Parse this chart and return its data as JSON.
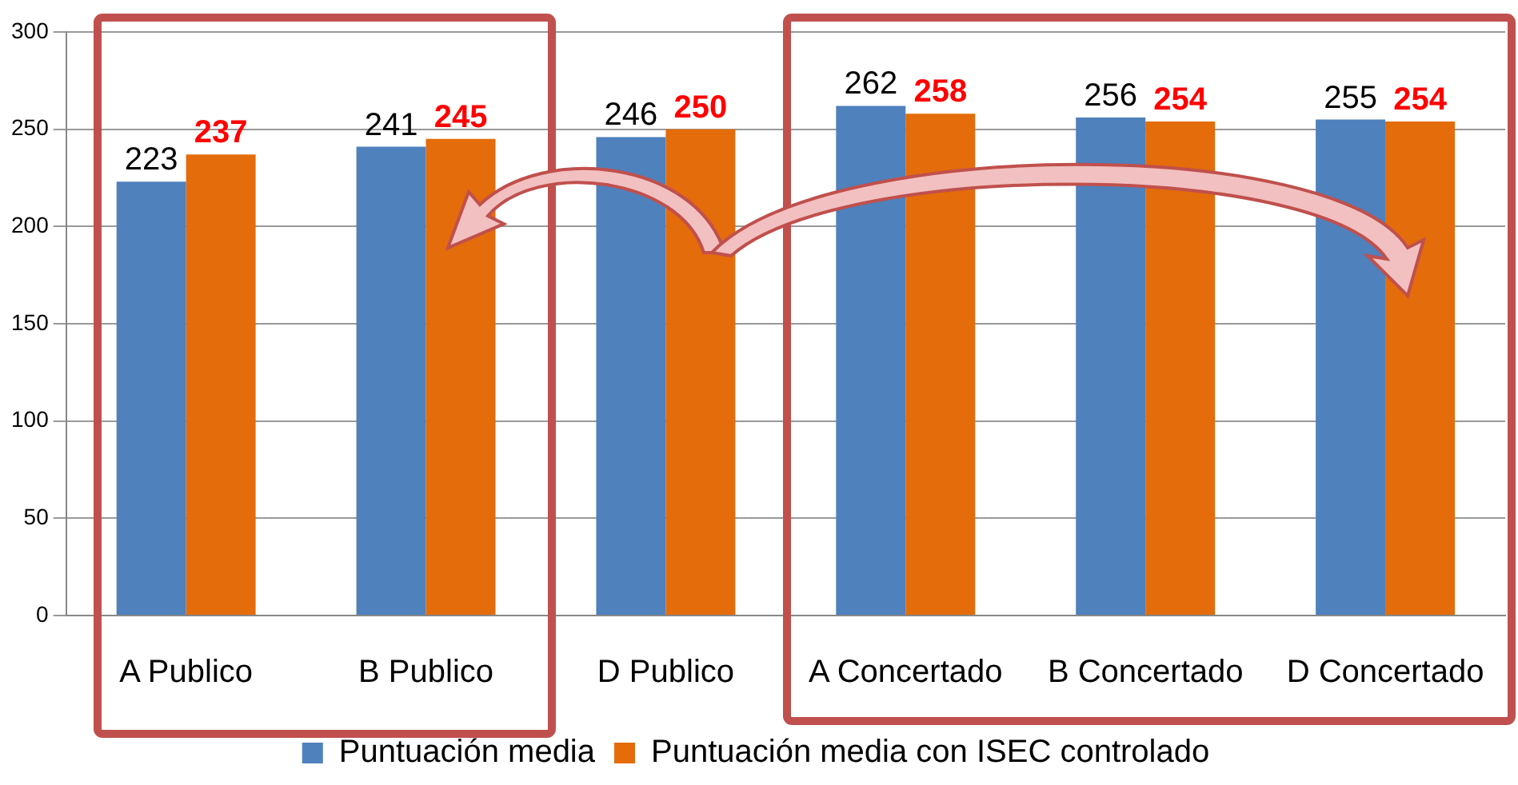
{
  "chart_data": {
    "type": "bar",
    "categories": [
      "A Publico",
      "B Publico",
      "D Publico",
      "A Concertado",
      "B Concertado",
      "D Concertado"
    ],
    "series": [
      {
        "name": "Puntuación media",
        "color": "#4f81bd",
        "values": [
          223,
          241,
          246,
          262,
          256,
          255
        ]
      },
      {
        "name": "Puntuación media con ISEC controlado",
        "color": "#e46c0a",
        "values": [
          237,
          245,
          250,
          258,
          254,
          254
        ]
      }
    ],
    "ylim": [
      0,
      300
    ],
    "yticks": [
      0,
      50,
      100,
      150,
      200,
      250,
      300
    ],
    "grid": "y",
    "legend": "bottom",
    "data_labels": true
  }
}
